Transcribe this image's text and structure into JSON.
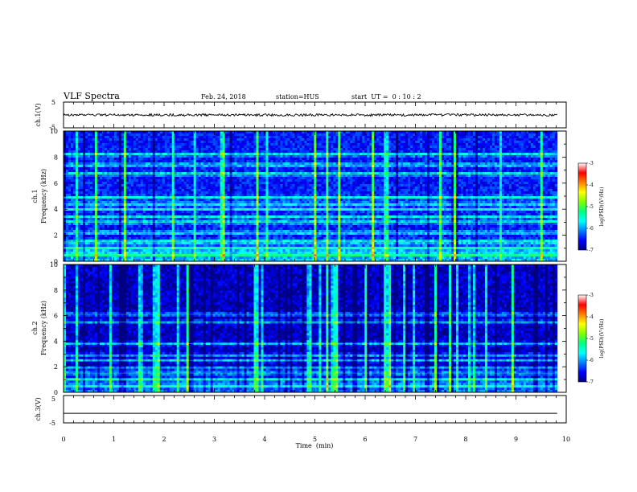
{
  "chart_data": {
    "type": "heatmap",
    "header": {
      "title": "VLF Spectra",
      "date": "Feb. 24, 2018",
      "station": "station=HUS",
      "start": "start  UT =  0 : 10 : 2"
    },
    "xlabel": "Time  (min)",
    "xlim": [
      0,
      10
    ],
    "x_ticks": [
      "0",
      "1",
      "2",
      "3",
      "4",
      "5",
      "6",
      "7",
      "8",
      "9",
      "10"
    ],
    "panels": [
      {
        "name": "ch1-voltage",
        "type": "line",
        "ylabel": "ch.1(V)",
        "ylim": [
          -5,
          5
        ],
        "y_ticks": [
          "5",
          "-5"
        ],
        "level": 0
      },
      {
        "name": "ch1-spectrogram",
        "type": "heatmap",
        "ylabel": [
          "ch.1",
          "Frequency  (kHz)"
        ],
        "ylim": [
          0,
          10
        ],
        "y_ticks": [
          "0",
          "2",
          "4",
          "6",
          "8",
          "10"
        ],
        "bright_bands_khz": [
          0.5,
          1.0,
          1.5,
          2.2,
          3.0,
          3.4,
          4.0,
          4.4,
          4.9,
          6.7,
          7.4,
          8.2
        ]
      },
      {
        "name": "ch2-spectrogram",
        "type": "heatmap",
        "ylabel": [
          "ch.2",
          "Frequency  (kHz)"
        ],
        "ylim": [
          0,
          10
        ],
        "y_ticks": [
          "0",
          "2",
          "4",
          "6",
          "8",
          "10"
        ],
        "bright_bands_khz": [
          0.5,
          1.0,
          1.5,
          1.9,
          2.5,
          2.9,
          3.8,
          5.5,
          6.1
        ]
      },
      {
        "name": "ch3-voltage",
        "type": "line",
        "ylabel": "ch.3(V)",
        "ylim": [
          -5,
          5
        ],
        "y_ticks": [
          "5",
          "-5"
        ],
        "level": -1.5
      }
    ],
    "colorbar": {
      "label": "log(PSD)(V²/Hz)",
      "range": [
        -7,
        -3
      ],
      "ticks": [
        "-3",
        "-4",
        "-5",
        "-6",
        "-7"
      ],
      "colors": [
        "#000080",
        "#0000ff",
        "#0080ff",
        "#00ffff",
        "#00ff80",
        "#80ff00",
        "#ffff00",
        "#ff8000",
        "#ff0000",
        "#ffffff"
      ]
    }
  }
}
